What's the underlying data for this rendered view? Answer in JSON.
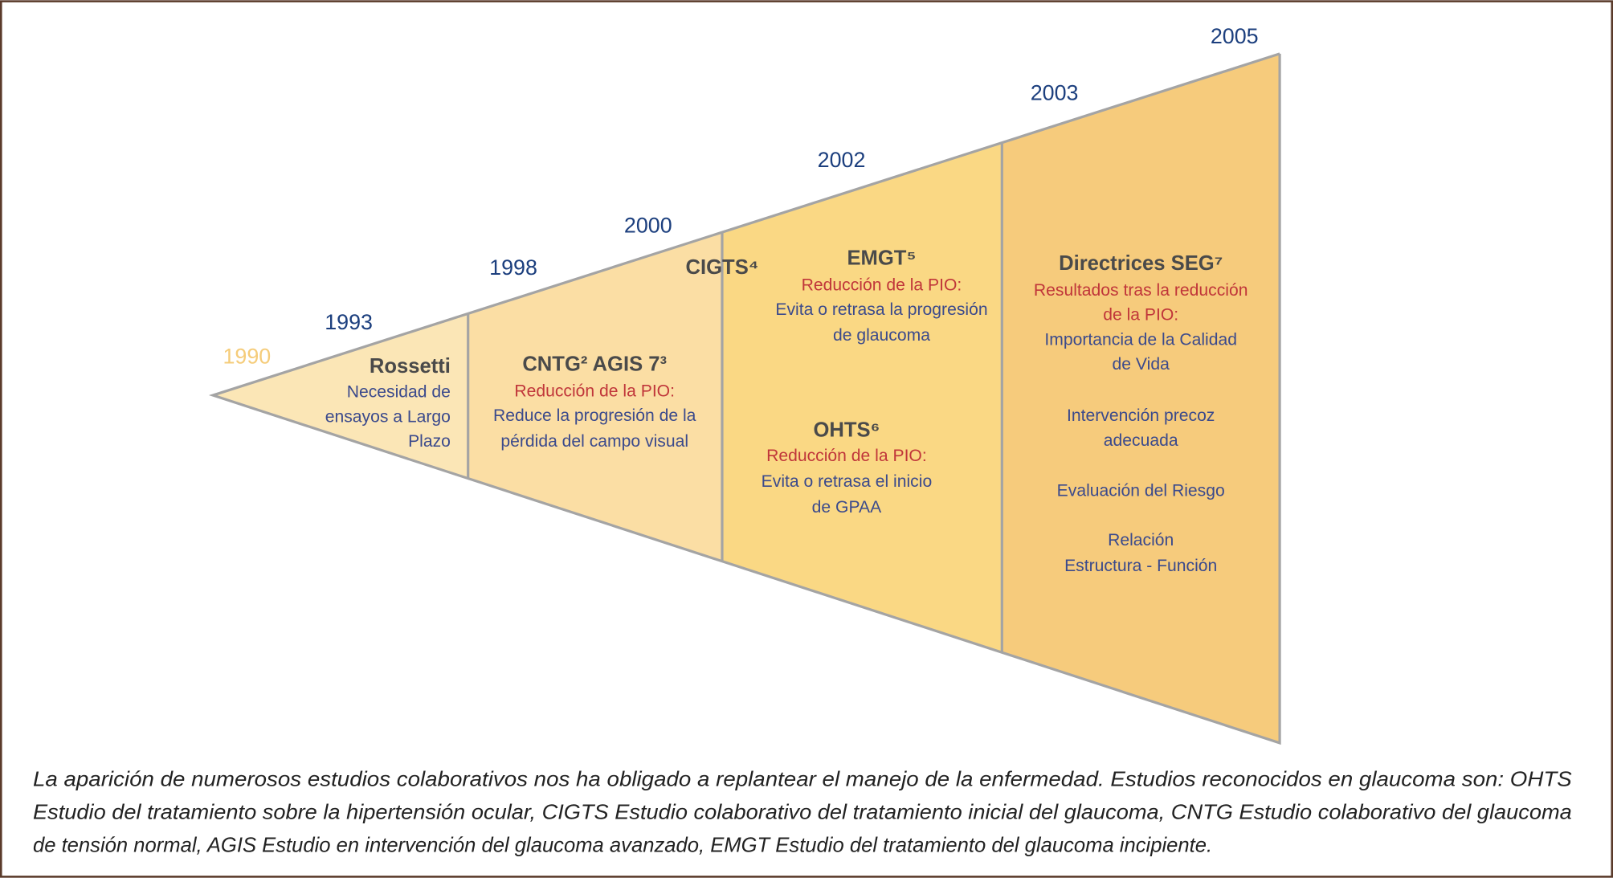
{
  "years": [
    "1990",
    "1993",
    "1998",
    "2000",
    "2002",
    "2003",
    "2005"
  ],
  "blocks": [
    {
      "title": "Rossetti",
      "lines": [
        "Necesidad de",
        "ensayos a Largo",
        "Plazo"
      ]
    },
    {
      "title": "CNTG² AGIS 7³",
      "highlight": [
        "Reducción de la PIO:"
      ],
      "lines": [
        "Reduce la progresión de la",
        "pérdida del campo visual"
      ]
    },
    {
      "title": "CIGTS⁴"
    },
    {
      "title": "EMGT⁵",
      "highlight": [
        "Reducción de la PIO:"
      ],
      "lines": [
        "Evita o retrasa la progresión",
        "de glaucoma"
      ]
    },
    {
      "title": "OHTS⁶",
      "highlight": [
        "Reducción de la PIO:"
      ],
      "lines": [
        "Evita o retrasa el inicio",
        "de GPAA"
      ]
    },
    {
      "title": "Directrices SEG⁷",
      "highlight": [
        "Resultados tras la reducción",
        "de la PIO:"
      ],
      "lines": [
        "Importancia de la Calidad",
        "de Vida",
        "Intervención precoz",
        "adecuada",
        "Evaluación del Riesgo",
        "Relación",
        "Estructura - Función"
      ]
    }
  ],
  "caption": [
    "La aparición de numerosos estudios colaborativos nos ha obligado a replantear el manejo de la enfermedad. Estudios reconocidos en glaucoma son: OHTS",
    "Estudio del tratamiento sobre la hipertensión ocular, CIGTS Estudio colaborativo del tratamiento inicial del glaucoma, CNTG Estudio colaborativo del glaucoma",
    "de tensión normal, AGIS Estudio en intervención del glaucoma avanzado, EMGT Estudio del tratamiento del glaucoma incipiente."
  ]
}
